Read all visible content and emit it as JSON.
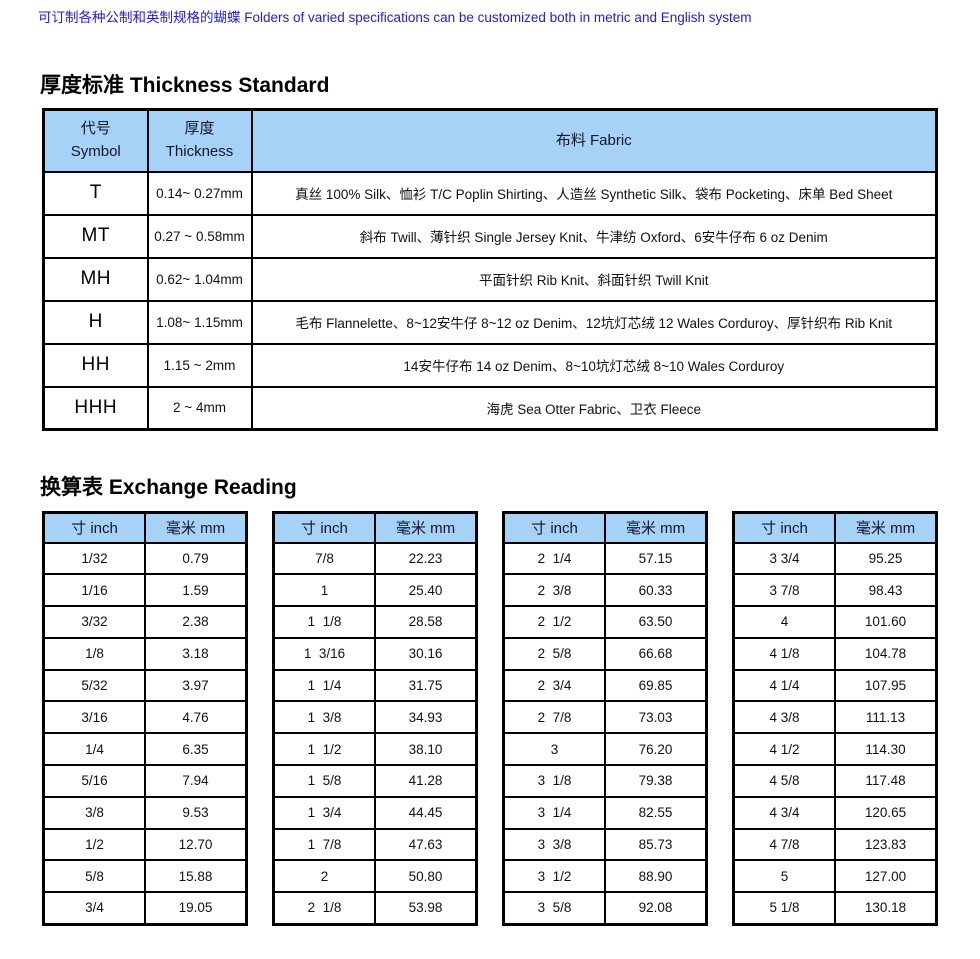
{
  "page": {
    "note": "可订制各种公制和英制规格的蝴蝶 Folders of varied specifications can be customized both in metric and English system"
  },
  "colors": {
    "note_text": "#2222cc",
    "table_header_bg": "#a6d2f7",
    "table_header_text": "#14142b",
    "border": "#000000"
  },
  "thickness": {
    "title": "厚度标准 Thickness Standard",
    "headers": {
      "symbol_zh": "代号",
      "symbol_en": "Symbol",
      "thickness_zh": "厚度",
      "thickness_en": "Thickness",
      "fabric": "布料 Fabric"
    },
    "rows": [
      {
        "symbol": "T",
        "range": "0.14~ 0.27mm",
        "fabric": "真丝 100% Silk、恤衫 T/C Poplin Shirting、人造丝 Synthetic Silk、袋布 Pocketing、床单 Bed Sheet"
      },
      {
        "symbol": "MT",
        "range": "0.27 ~ 0.58mm",
        "fabric": "斜布 Twill、薄针织 Single Jersey Knit、牛津纺 Oxford、6安牛仔布 6 oz Denim"
      },
      {
        "symbol": "MH",
        "range": "0.62~ 1.04mm",
        "fabric": "平面针织 Rib Knit、斜面针织 Twill Knit"
      },
      {
        "symbol": "H",
        "range": "1.08~ 1.15mm",
        "fabric": "毛布 Flannelette、8~12安牛仔 8~12 oz Denim、12坑灯芯绒 12 Wales Corduroy、厚针织布 Rib Knit"
      },
      {
        "symbol": "HH",
        "range": "1.15 ~ 2mm",
        "fabric": "14安牛仔布 14 oz Denim、8~10坑灯芯绒 8~10 Wales Corduroy"
      },
      {
        "symbol": "HHH",
        "range": "2 ~ 4mm",
        "fabric": "海虎 Sea Otter Fabric、卫衣 Fleece"
      }
    ]
  },
  "exchange": {
    "title": "换算表 Exchange Reading",
    "col_headers": {
      "inch": "寸 inch",
      "mm": "毫米 mm"
    },
    "tables": [
      {
        "rows": [
          [
            "1/32",
            "0.79"
          ],
          [
            "1/16",
            "1.59"
          ],
          [
            "3/32",
            "2.38"
          ],
          [
            "1/8",
            "3.18"
          ],
          [
            "5/32",
            "3.97"
          ],
          [
            "3/16",
            "4.76"
          ],
          [
            "1/4",
            "6.35"
          ],
          [
            "5/16",
            "7.94"
          ],
          [
            "3/8",
            "9.53"
          ],
          [
            "1/2",
            "12.70"
          ],
          [
            "5/8",
            "15.88"
          ],
          [
            "3/4",
            "19.05"
          ]
        ]
      },
      {
        "rows": [
          [
            "7/8",
            "22.23"
          ],
          [
            "1",
            "25.40"
          ],
          [
            "1  1/8",
            "28.58"
          ],
          [
            "1  3/16",
            "30.16"
          ],
          [
            "1  1/4",
            "31.75"
          ],
          [
            "1  3/8",
            "34.93"
          ],
          [
            "1  1/2",
            "38.10"
          ],
          [
            "1  5/8",
            "41.28"
          ],
          [
            "1  3/4",
            "44.45"
          ],
          [
            "1  7/8",
            "47.63"
          ],
          [
            "2",
            "50.80"
          ],
          [
            "2  1/8",
            "53.98"
          ]
        ]
      },
      {
        "rows": [
          [
            "2  1/4",
            "57.15"
          ],
          [
            "2  3/8",
            "60.33"
          ],
          [
            "2  1/2",
            "63.50"
          ],
          [
            "2  5/8",
            "66.68"
          ],
          [
            "2  3/4",
            "69.85"
          ],
          [
            "2  7/8",
            "73.03"
          ],
          [
            "3",
            "76.20"
          ],
          [
            "3  1/8",
            "79.38"
          ],
          [
            "3  1/4",
            "82.55"
          ],
          [
            "3  3/8",
            "85.73"
          ],
          [
            "3  1/2",
            "88.90"
          ],
          [
            "3  5/8",
            "92.08"
          ]
        ]
      },
      {
        "rows": [
          [
            "3 3/4",
            "95.25"
          ],
          [
            "3 7/8",
            "98.43"
          ],
          [
            "4",
            "101.60"
          ],
          [
            "4 1/8",
            "104.78"
          ],
          [
            "4 1/4",
            "107.95"
          ],
          [
            "4 3/8",
            "111.13"
          ],
          [
            "4 1/2",
            "114.30"
          ],
          [
            "4 5/8",
            "117.48"
          ],
          [
            "4 3/4",
            "120.65"
          ],
          [
            "4 7/8",
            "123.83"
          ],
          [
            "5",
            "127.00"
          ],
          [
            "5 1/8",
            "130.18"
          ]
        ]
      }
    ]
  }
}
